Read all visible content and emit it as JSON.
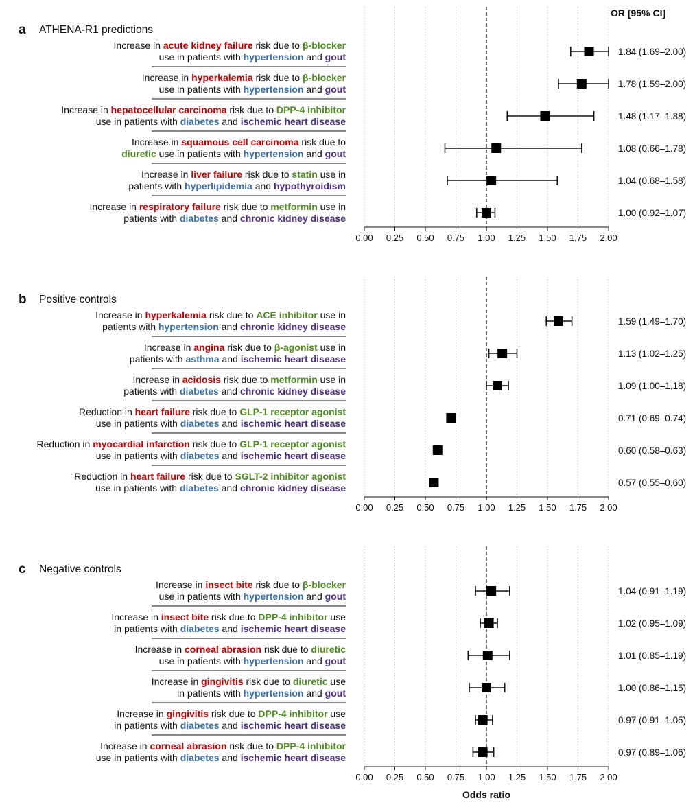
{
  "colors": {
    "outcome": "#c00000",
    "drug": "#4e8a1f",
    "condition1": "#3a6fa7",
    "condition2": "#4b2d83",
    "text": "#111111"
  },
  "or_header": "OR [95% CI]",
  "xlabel": "Odds ratio",
  "chart_data": [
    {
      "type": "forest",
      "letter": "a",
      "title": "ATHENA-R1 predictions",
      "x_ticks": [
        "0.00",
        "0.25",
        "0.50",
        "0.75",
        "1.00",
        "1.25",
        "1.50",
        "1.75",
        "2.00"
      ],
      "xlim": [
        0,
        2
      ],
      "reference_line": 1,
      "rows": [
        {
          "line1": [
            [
              "Increase in ",
              ""
            ],
            [
              "acute kidney failure",
              "o"
            ],
            [
              " risk due to ",
              ""
            ],
            [
              "β-blocker",
              "d"
            ]
          ],
          "line2": [
            [
              "use in patients with ",
              ""
            ],
            [
              "hypertension",
              "c1"
            ],
            [
              " and ",
              ""
            ],
            [
              "gout",
              "c2"
            ]
          ],
          "or": 1.84,
          "lo": 1.69,
          "hi": 2.0,
          "label": "1.84 (1.69–2.00)"
        },
        {
          "line1": [
            [
              "Increase in ",
              ""
            ],
            [
              "hyperkalemia",
              "o"
            ],
            [
              " risk due to ",
              ""
            ],
            [
              "β-blocker",
              "d"
            ]
          ],
          "line2": [
            [
              "use in patients with ",
              ""
            ],
            [
              "hypertension",
              "c1"
            ],
            [
              " and ",
              ""
            ],
            [
              "gout",
              "c2"
            ]
          ],
          "or": 1.78,
          "lo": 1.59,
          "hi": 2.0,
          "label": "1.78 (1.59–2.00)"
        },
        {
          "line1": [
            [
              "Increase in ",
              ""
            ],
            [
              "hepatocellular carcinoma",
              "o"
            ],
            [
              " risk due to ",
              ""
            ],
            [
              "DPP-4 inhibitor",
              "d"
            ]
          ],
          "line2": [
            [
              "use in patients with ",
              ""
            ],
            [
              "diabetes",
              "c1"
            ],
            [
              " and ",
              ""
            ],
            [
              "ischemic heart disease",
              "c2"
            ]
          ],
          "or": 1.48,
          "lo": 1.17,
          "hi": 1.88,
          "label": "1.48 (1.17–1.88)"
        },
        {
          "line1": [
            [
              "Increase in ",
              ""
            ],
            [
              "squamous cell carcinoma",
              "o"
            ],
            [
              " risk due to",
              ""
            ]
          ],
          "line2": [
            [
              "diuretic",
              "d"
            ],
            [
              " use in patients with ",
              ""
            ],
            [
              "hypertension",
              "c1"
            ],
            [
              " and ",
              ""
            ],
            [
              "gout",
              "c2"
            ]
          ],
          "or": 1.08,
          "lo": 0.66,
          "hi": 1.78,
          "label": "1.08 (0.66–1.78)"
        },
        {
          "line1": [
            [
              "Increase in ",
              ""
            ],
            [
              "liver failure",
              "o"
            ],
            [
              " risk due to ",
              ""
            ],
            [
              "statin",
              "d"
            ],
            [
              " use in",
              ""
            ]
          ],
          "line2": [
            [
              "patients with ",
              ""
            ],
            [
              "hyperlipidemia",
              "c1"
            ],
            [
              " and ",
              ""
            ],
            [
              "hypothyroidism",
              "c2"
            ]
          ],
          "or": 1.04,
          "lo": 0.68,
          "hi": 1.58,
          "label": "1.04 (0.68–1.58)"
        },
        {
          "line1": [
            [
              "Increase in ",
              ""
            ],
            [
              "respiratory failure",
              "o"
            ],
            [
              " risk due to ",
              ""
            ],
            [
              "metformin",
              "d"
            ],
            [
              " use in",
              ""
            ]
          ],
          "line2": [
            [
              "patients with ",
              ""
            ],
            [
              "diabetes",
              "c1"
            ],
            [
              " and ",
              ""
            ],
            [
              "chronic kidney disease",
              "c2"
            ]
          ],
          "or": 1.0,
          "lo": 0.92,
          "hi": 1.07,
          "label": "1.00 (0.92–1.07)"
        }
      ]
    },
    {
      "type": "forest",
      "letter": "b",
      "title": "Positive controls",
      "x_ticks": [
        "0.00",
        "0.25",
        "0.50",
        "0.75",
        "1.00",
        "1.25",
        "1.50",
        "1.75",
        "2.00"
      ],
      "xlim": [
        0,
        2
      ],
      "reference_line": 1,
      "rows": [
        {
          "line1": [
            [
              "Increase in ",
              ""
            ],
            [
              "hyperkalemia",
              "o"
            ],
            [
              " risk due to ",
              ""
            ],
            [
              "ACE inhibitor",
              "d"
            ],
            [
              " use in",
              ""
            ]
          ],
          "line2": [
            [
              "patients with ",
              ""
            ],
            [
              "hypertension",
              "c1"
            ],
            [
              " and ",
              ""
            ],
            [
              "chronic kidney disease",
              "c2"
            ]
          ],
          "or": 1.59,
          "lo": 1.49,
          "hi": 1.7,
          "label": "1.59 (1.49–1.70)"
        },
        {
          "line1": [
            [
              "Increase in ",
              ""
            ],
            [
              "angina",
              "o"
            ],
            [
              " risk due to ",
              ""
            ],
            [
              "β-agonist",
              "d"
            ],
            [
              " use in",
              ""
            ]
          ],
          "line2": [
            [
              "patients with ",
              ""
            ],
            [
              "asthma",
              "c1"
            ],
            [
              " and ",
              ""
            ],
            [
              "ischemic heart disease",
              "c2"
            ]
          ],
          "or": 1.13,
          "lo": 1.02,
          "hi": 1.25,
          "label": "1.13 (1.02–1.25)"
        },
        {
          "line1": [
            [
              "Increase in ",
              ""
            ],
            [
              "acidosis",
              "o"
            ],
            [
              " risk due to ",
              ""
            ],
            [
              "metformin",
              "d"
            ],
            [
              " use in",
              ""
            ]
          ],
          "line2": [
            [
              "patients with ",
              ""
            ],
            [
              "diabetes",
              "c1"
            ],
            [
              " and ",
              ""
            ],
            [
              "chronic kidney disease",
              "c2"
            ]
          ],
          "or": 1.09,
          "lo": 1.0,
          "hi": 1.18,
          "label": "1.09 (1.00–1.18)"
        },
        {
          "line1": [
            [
              "Reduction in ",
              ""
            ],
            [
              "heart failure",
              "o"
            ],
            [
              " risk due to ",
              ""
            ],
            [
              "GLP-1 receptor agonist",
              "d"
            ]
          ],
          "line2": [
            [
              "use in patients with ",
              ""
            ],
            [
              "diabetes",
              "c1"
            ],
            [
              " and ",
              ""
            ],
            [
              "ischemic heart disease",
              "c2"
            ]
          ],
          "or": 0.71,
          "lo": 0.69,
          "hi": 0.74,
          "label": "0.71 (0.69–0.74)"
        },
        {
          "line1": [
            [
              "Reduction in ",
              ""
            ],
            [
              "myocardial infarction",
              "o"
            ],
            [
              " risk due to ",
              ""
            ],
            [
              "GLP-1 receptor agonist",
              "d"
            ]
          ],
          "line2": [
            [
              "use in patients with ",
              ""
            ],
            [
              "diabetes",
              "c1"
            ],
            [
              " and ",
              ""
            ],
            [
              "ischemic heart disease",
              "c2"
            ]
          ],
          "or": 0.6,
          "lo": 0.58,
          "hi": 0.63,
          "label": "0.60 (0.58–0.63)"
        },
        {
          "line1": [
            [
              "Reduction in ",
              ""
            ],
            [
              "heart failure",
              "o"
            ],
            [
              " risk due to ",
              ""
            ],
            [
              "SGLT-2 inhibitor agonist",
              "d"
            ]
          ],
          "line2": [
            [
              "use in patients with ",
              ""
            ],
            [
              "diabetes",
              "c1"
            ],
            [
              " and ",
              ""
            ],
            [
              "chronic kidney disease",
              "c2"
            ]
          ],
          "or": 0.57,
          "lo": 0.55,
          "hi": 0.6,
          "label": "0.57 (0.55–0.60)"
        }
      ]
    },
    {
      "type": "forest",
      "letter": "c",
      "title": "Negative controls",
      "x_ticks": [
        "0.00",
        "0.25",
        "0.50",
        "0.75",
        "1.00",
        "1.25",
        "1.50",
        "1.75",
        "2.00"
      ],
      "xlim": [
        0,
        2
      ],
      "reference_line": 1,
      "rows": [
        {
          "line1": [
            [
              "Increase in ",
              ""
            ],
            [
              "insect bite",
              "o"
            ],
            [
              " risk due to ",
              ""
            ],
            [
              "β-blocker",
              "d"
            ]
          ],
          "line2": [
            [
              "use in patients with ",
              ""
            ],
            [
              "hypertension",
              "c1"
            ],
            [
              " and ",
              ""
            ],
            [
              "gout",
              "c2"
            ]
          ],
          "or": 1.04,
          "lo": 0.91,
          "hi": 1.19,
          "label": "1.04 (0.91–1.19)"
        },
        {
          "line1": [
            [
              "Increase in ",
              ""
            ],
            [
              "insect bite",
              "o"
            ],
            [
              " risk due to ",
              ""
            ],
            [
              "DPP-4 inhibitor",
              "d"
            ],
            [
              " use",
              ""
            ]
          ],
          "line2": [
            [
              "in patients with ",
              ""
            ],
            [
              "diabetes",
              "c1"
            ],
            [
              " and ",
              ""
            ],
            [
              "ischemic heart disease",
              "c2"
            ]
          ],
          "or": 1.02,
          "lo": 0.95,
          "hi": 1.09,
          "label": "1.02 (0.95–1.09)"
        },
        {
          "line1": [
            [
              "Increase in ",
              ""
            ],
            [
              "corneal abrasion",
              "o"
            ],
            [
              " risk due to ",
              ""
            ],
            [
              "diuretic",
              "d"
            ]
          ],
          "line2": [
            [
              "use in patients with ",
              ""
            ],
            [
              "hypertension",
              "c1"
            ],
            [
              " and ",
              ""
            ],
            [
              "gout",
              "c2"
            ]
          ],
          "or": 1.01,
          "lo": 0.85,
          "hi": 1.19,
          "label": "1.01 (0.85–1.19)"
        },
        {
          "line1": [
            [
              "Increase in ",
              ""
            ],
            [
              "gingivitis",
              "o"
            ],
            [
              " risk due to ",
              ""
            ],
            [
              "diuretic",
              "d"
            ],
            [
              " use",
              ""
            ]
          ],
          "line2": [
            [
              "in patients with ",
              ""
            ],
            [
              "hypertension",
              "c1"
            ],
            [
              " and ",
              ""
            ],
            [
              "gout",
              "c2"
            ]
          ],
          "or": 1.0,
          "lo": 0.86,
          "hi": 1.15,
          "label": "1.00 (0.86–1.15)"
        },
        {
          "line1": [
            [
              "Increase in ",
              ""
            ],
            [
              "gingivitis",
              "o"
            ],
            [
              " risk due to ",
              ""
            ],
            [
              "DPP-4 inhibitor",
              "d"
            ],
            [
              " use",
              ""
            ]
          ],
          "line2": [
            [
              "in patients with ",
              ""
            ],
            [
              "diabetes",
              "c1"
            ],
            [
              " and ",
              ""
            ],
            [
              "ischemic heart disease",
              "c2"
            ]
          ],
          "or": 0.97,
          "lo": 0.91,
          "hi": 1.05,
          "label": "0.97 (0.91–1.05)"
        },
        {
          "line1": [
            [
              "Increase in ",
              ""
            ],
            [
              "corneal abrasion",
              "o"
            ],
            [
              " risk due to ",
              ""
            ],
            [
              "DPP-4 inhibitor",
              "d"
            ]
          ],
          "line2": [
            [
              "use in patients with ",
              ""
            ],
            [
              "diabetes",
              "c1"
            ],
            [
              " and ",
              ""
            ],
            [
              "ischemic heart disease",
              "c2"
            ]
          ],
          "or": 0.97,
          "lo": 0.89,
          "hi": 1.06,
          "label": "0.97 (0.89–1.06)"
        }
      ]
    }
  ]
}
